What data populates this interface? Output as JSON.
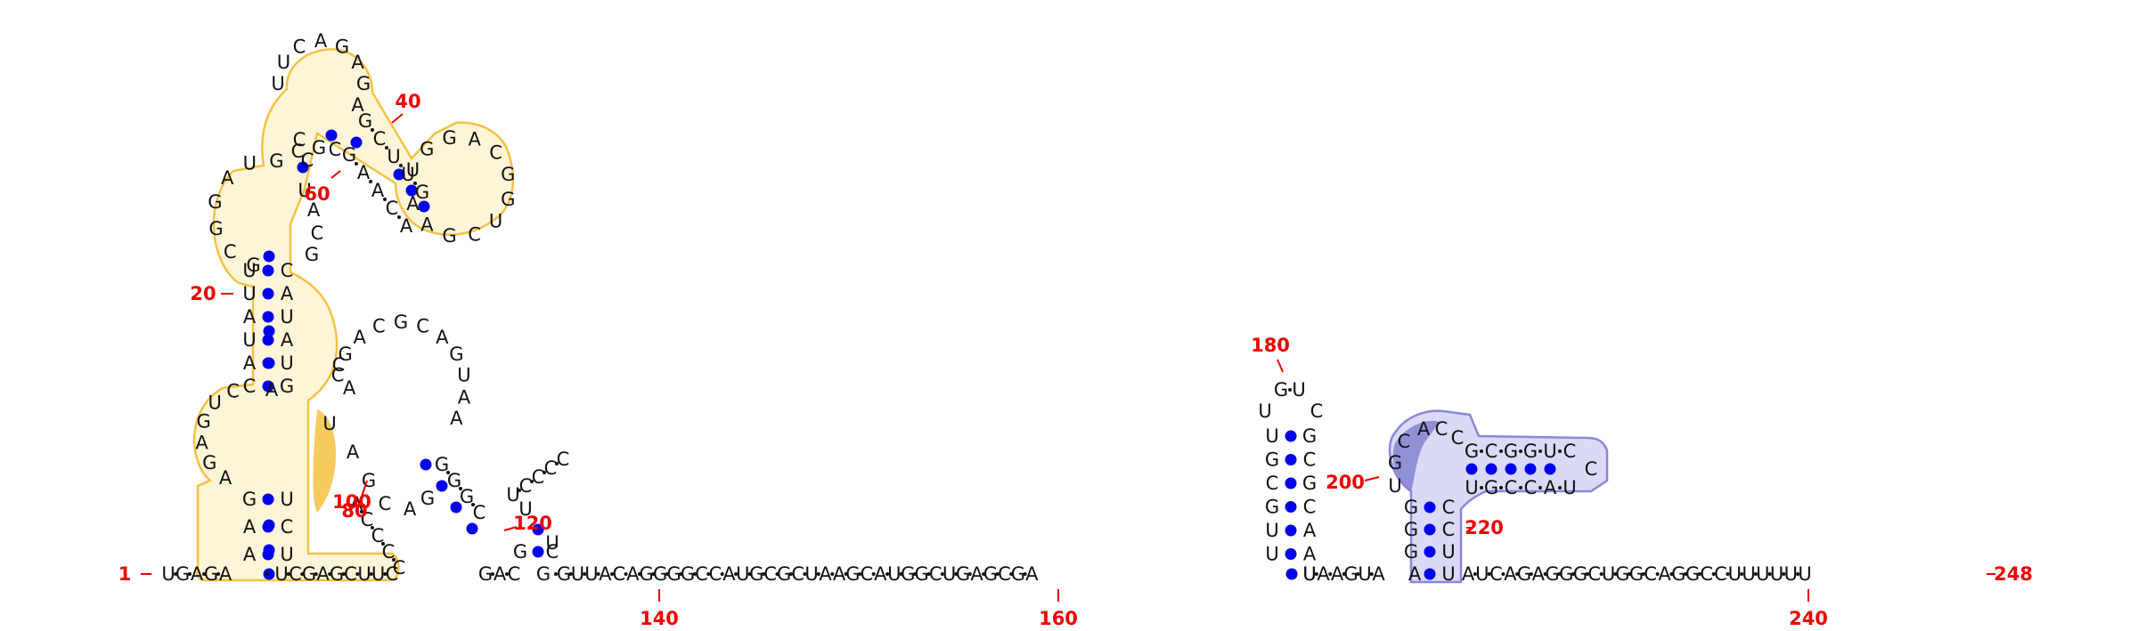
{
  "colors": {
    "nucleotide": "#111111",
    "base_pair": "#0000ee",
    "number": "#ee0000",
    "highlight_yellow": "#f5c242",
    "highlight_blue": "#8888dd"
  },
  "numbers": [
    "1",
    "20",
    "40",
    "60",
    "80",
    "100",
    "120",
    "140",
    "160",
    "180",
    "200",
    "220",
    "240",
    "248"
  ],
  "backbone_right": "U·A·A·G·U·A",
  "backbone_tail": "A·U·C·A·G·A·G·G·G·C·U·G·G·C·A·G·G·C·C·U·U·U·U·U·U",
  "backbone_middle": "G·U·U·A·C·A·G·G·G·G·C·C·A·U·G·C·G·C·U·A·A·G·C·A·U·G·G·C·U·G·A·G·C·G·A",
  "stem_180_left": [
    "U",
    "G",
    "C",
    "G",
    "U",
    "U"
  ],
  "stem_180_right": [
    "G",
    "C",
    "G",
    "C",
    "A",
    "A"
  ],
  "loop_180": [
    "U",
    "G",
    "U",
    "C"
  ],
  "stem_200_left": [
    "C",
    "G",
    "U",
    "G",
    "G",
    "G"
  ],
  "stem_200_right": [
    "C",
    "C",
    "U"
  ],
  "arm_upper": [
    "G",
    "C",
    "G",
    "G",
    "U",
    "C"
  ],
  "arm_lower": [
    "U",
    "G",
    "C",
    "C",
    "A",
    "U"
  ],
  "loop_200": [
    "A",
    "C",
    "C"
  ],
  "arm_tip": "C"
}
